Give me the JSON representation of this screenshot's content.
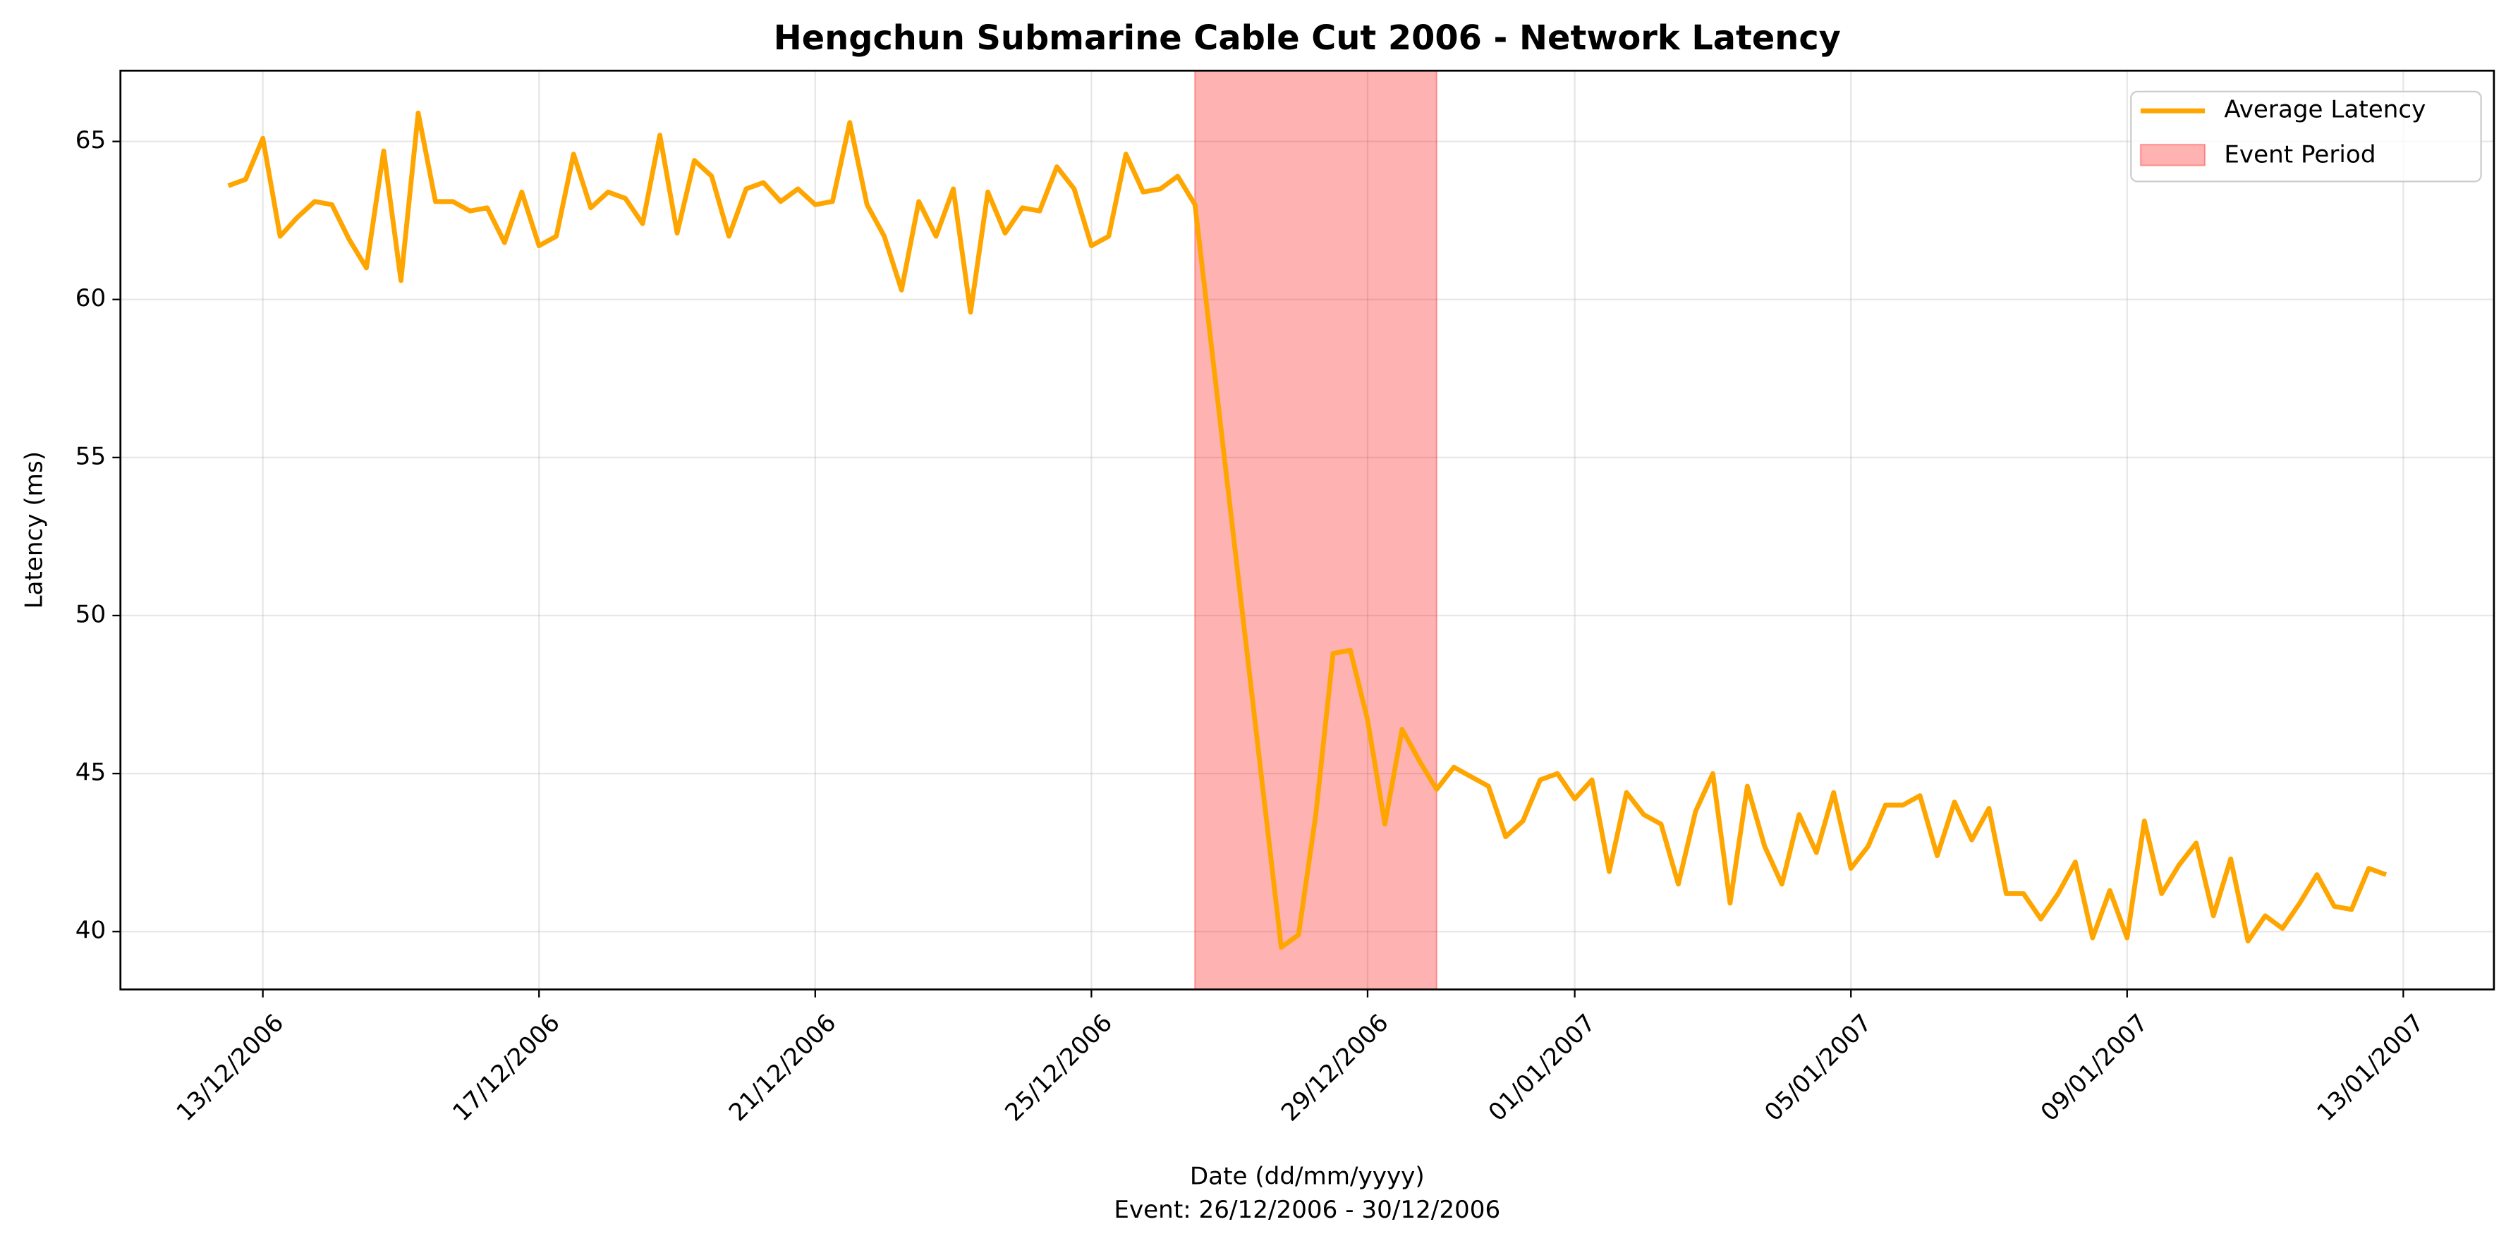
{
  "chart_data": {
    "type": "line",
    "title": "Hengchun Submarine Cable Cut 2006 - Network Latency",
    "x_label": "Date (dd/mm/yyyy)",
    "subtitle": "Event: 26/12/2006 - 30/12/2006",
    "y_label": "Latency (ms)",
    "x": [
      "2006-12-12T12:00",
      "2006-12-12T18:00",
      "2006-12-13T00:00",
      "2006-12-13T06:00",
      "2006-12-13T12:00",
      "2006-12-13T18:00",
      "2006-12-14T00:00",
      "2006-12-14T06:00",
      "2006-12-14T12:00",
      "2006-12-14T18:00",
      "2006-12-15T00:00",
      "2006-12-15T06:00",
      "2006-12-15T12:00",
      "2006-12-15T18:00",
      "2006-12-16T00:00",
      "2006-12-16T06:00",
      "2006-12-16T12:00",
      "2006-12-16T18:00",
      "2006-12-17T00:00",
      "2006-12-17T06:00",
      "2006-12-17T12:00",
      "2006-12-17T18:00",
      "2006-12-18T00:00",
      "2006-12-18T06:00",
      "2006-12-18T12:00",
      "2006-12-18T18:00",
      "2006-12-19T00:00",
      "2006-12-19T06:00",
      "2006-12-19T12:00",
      "2006-12-19T18:00",
      "2006-12-20T00:00",
      "2006-12-20T06:00",
      "2006-12-20T12:00",
      "2006-12-20T18:00",
      "2006-12-21T00:00",
      "2006-12-21T06:00",
      "2006-12-21T12:00",
      "2006-12-21T18:00",
      "2006-12-22T00:00",
      "2006-12-22T06:00",
      "2006-12-22T12:00",
      "2006-12-22T18:00",
      "2006-12-23T00:00",
      "2006-12-23T06:00",
      "2006-12-23T12:00",
      "2006-12-23T18:00",
      "2006-12-24T00:00",
      "2006-12-24T06:00",
      "2006-12-24T12:00",
      "2006-12-24T18:00",
      "2006-12-25T00:00",
      "2006-12-25T06:00",
      "2006-12-25T12:00",
      "2006-12-25T18:00",
      "2006-12-26T00:00",
      "2006-12-26T06:00",
      "2006-12-26T12:00",
      "2006-12-27T18:00",
      "2006-12-28T00:00",
      "2006-12-28T06:00",
      "2006-12-28T12:00",
      "2006-12-28T18:00",
      "2006-12-29T00:00",
      "2006-12-29T06:00",
      "2006-12-29T12:00",
      "2006-12-29T18:00",
      "2006-12-30T00:00",
      "2006-12-30T06:00",
      "2006-12-30T12:00",
      "2006-12-30T18:00",
      "2006-12-31T00:00",
      "2006-12-31T06:00",
      "2006-12-31T12:00",
      "2006-12-31T18:00",
      "2007-01-01T00:00",
      "2007-01-01T06:00",
      "2007-01-01T12:00",
      "2007-01-01T18:00",
      "2007-01-02T00:00",
      "2007-01-02T06:00",
      "2007-01-02T12:00",
      "2007-01-02T18:00",
      "2007-01-03T00:00",
      "2007-01-03T06:00",
      "2007-01-03T12:00",
      "2007-01-03T18:00",
      "2007-01-04T00:00",
      "2007-01-04T06:00",
      "2007-01-04T12:00",
      "2007-01-04T18:00",
      "2007-01-05T00:00",
      "2007-01-05T06:00",
      "2007-01-05T12:00",
      "2007-01-05T18:00",
      "2007-01-06T00:00",
      "2007-01-06T06:00",
      "2007-01-06T12:00",
      "2007-01-06T18:00",
      "2007-01-07T00:00",
      "2007-01-07T06:00",
      "2007-01-07T12:00",
      "2007-01-07T18:00",
      "2007-01-08T00:00",
      "2007-01-08T06:00",
      "2007-01-08T12:00",
      "2007-01-08T18:00",
      "2007-01-09T00:00",
      "2007-01-09T06:00",
      "2007-01-09T12:00",
      "2007-01-09T18:00",
      "2007-01-10T00:00",
      "2007-01-10T06:00",
      "2007-01-10T12:00",
      "2007-01-10T18:00",
      "2007-01-11T00:00",
      "2007-01-11T06:00",
      "2007-01-11T12:00",
      "2007-01-11T18:00",
      "2007-01-12T00:00",
      "2007-01-12T06:00",
      "2007-01-12T12:00",
      "2007-01-12T18:00"
    ],
    "series": [
      {
        "name": "Average Latency",
        "color": "#ffa500",
        "values": [
          63.6,
          63.8,
          65.1,
          62.0,
          62.6,
          63.1,
          63.0,
          61.9,
          61.0,
          64.7,
          60.6,
          65.9,
          63.1,
          63.1,
          62.8,
          62.9,
          61.8,
          63.4,
          61.7,
          62.0,
          64.6,
          62.9,
          63.4,
          63.2,
          62.4,
          65.2,
          62.1,
          64.4,
          63.9,
          62.0,
          63.5,
          63.7,
          63.1,
          63.5,
          63.0,
          63.1,
          65.6,
          63.0,
          62.0,
          60.3,
          63.1,
          62.0,
          63.5,
          59.6,
          63.4,
          62.1,
          62.9,
          62.8,
          64.2,
          63.5,
          61.7,
          62.0,
          64.6,
          63.4,
          63.5,
          63.9,
          63.0,
          39.5,
          39.9,
          43.7,
          48.8,
          48.9,
          46.7,
          43.4,
          46.4,
          45.4,
          44.5,
          45.2,
          44.9,
          44.6,
          43.0,
          43.5,
          44.8,
          45.0,
          44.2,
          44.8,
          41.9,
          44.4,
          43.7,
          43.4,
          41.5,
          43.8,
          45.0,
          40.9,
          44.6,
          42.7,
          41.5,
          43.7,
          42.5,
          44.4,
          42.0,
          42.7,
          44.0,
          44.0,
          44.3,
          42.4,
          44.1,
          42.9,
          43.9,
          41.2,
          41.2,
          40.4,
          41.2,
          42.2,
          39.8,
          41.3,
          39.8,
          43.5,
          41.2,
          42.1,
          42.8,
          40.5,
          42.3,
          39.7,
          40.5,
          40.1,
          40.9,
          41.8,
          40.8,
          40.7,
          42.0,
          41.8
        ]
      }
    ],
    "event": {
      "label": "Event Period",
      "color": "#ff0000",
      "start": "2006-12-26T12:00",
      "end": "2006-12-30T00:00"
    },
    "xlim": [
      "2006-12-10T22:30",
      "2007-01-14T07:30"
    ],
    "xticks": [
      {
        "value": "2006-12-13T00:00",
        "label": "13/12/2006"
      },
      {
        "value": "2006-12-17T00:00",
        "label": "17/12/2006"
      },
      {
        "value": "2006-12-21T00:00",
        "label": "21/12/2006"
      },
      {
        "value": "2006-12-25T00:00",
        "label": "25/12/2006"
      },
      {
        "value": "2006-12-29T00:00",
        "label": "29/12/2006"
      },
      {
        "value": "2007-01-01T00:00",
        "label": "01/01/2007"
      },
      {
        "value": "2007-01-05T00:00",
        "label": "05/01/2007"
      },
      {
        "value": "2007-01-09T00:00",
        "label": "09/01/2007"
      },
      {
        "value": "2007-01-13T00:00",
        "label": "13/01/2007"
      }
    ],
    "ylim": [
      38.17,
      67.24
    ],
    "yticks": [
      40,
      45,
      50,
      55,
      60,
      65
    ],
    "grid": true,
    "legend": "upper right"
  }
}
